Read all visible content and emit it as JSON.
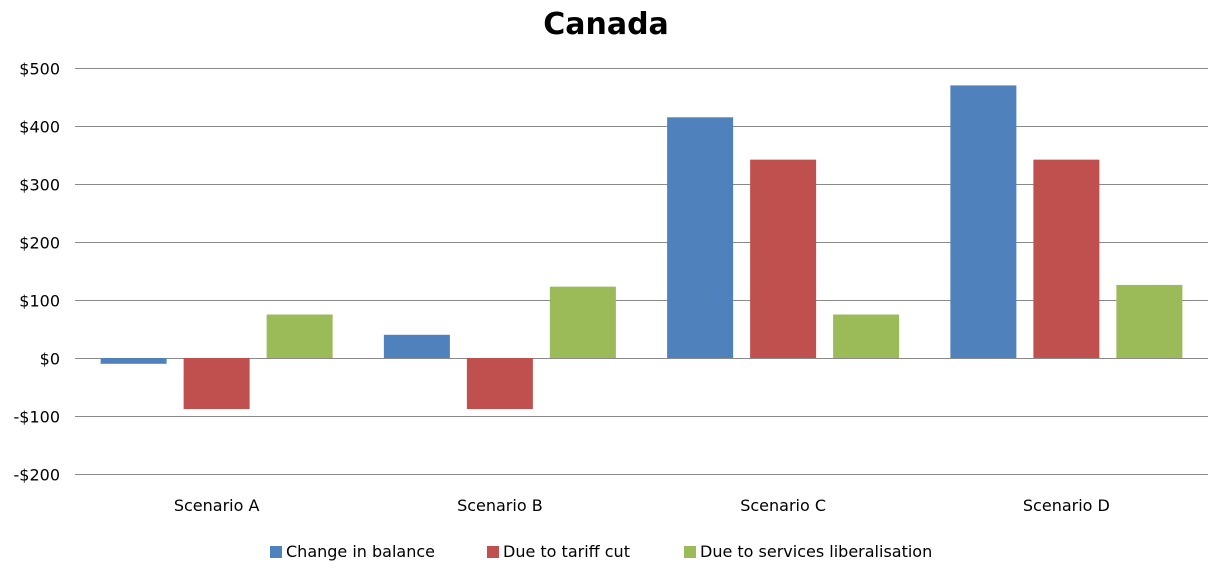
{
  "chart_data": {
    "type": "bar",
    "title": "Canada",
    "xlabel": "",
    "ylabel": "",
    "categories": [
      "Scenario A",
      "Scenario B",
      "Scenario C",
      "Scenario D"
    ],
    "series": [
      {
        "name": "Change in  balance",
        "color": "#4F81BD",
        "values": [
          -10,
          40,
          415,
          470
        ]
      },
      {
        "name": "Due to tariff cut",
        "color": "#C0504D",
        "values": [
          -88,
          -88,
          342,
          342
        ]
      },
      {
        "name": "Due to services liberalisation",
        "color": "#9BBB59",
        "values": [
          75,
          123,
          75,
          126
        ]
      }
    ],
    "ylim": [
      -200,
      500
    ],
    "yticks": [
      500,
      400,
      300,
      200,
      100,
      0,
      -100,
      -200
    ],
    "ytick_labels": [
      "$500",
      "$400",
      "$300",
      "$200",
      "$100",
      "$0",
      "-$100",
      "-$200"
    ],
    "grid": true,
    "legend_position": "bottom"
  }
}
